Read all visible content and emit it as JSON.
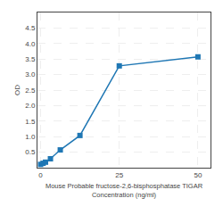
{
  "chart_data": {
    "type": "line",
    "x": [
      0,
      0.781,
      1.563,
      3.125,
      6.25,
      12.5,
      25,
      50
    ],
    "values": [
      0.107,
      0.142,
      0.178,
      0.288,
      0.573,
      1.038,
      3.28,
      3.57
    ],
    "xlabel": "Mouse Probable fructose-2,6-bisphosphatase TIGAR\nConcentration (ng/ml)",
    "ylabel": "OD",
    "xlim": [
      -1,
      54
    ],
    "ylim": [
      0,
      5.0
    ],
    "xticks": [
      0,
      25,
      50
    ],
    "yticks": [
      0.5,
      {
        "value": 1.0,
        "label": "1.0"
      },
      1.5,
      {
        "value": 2.0,
        "label": "2.0"
      },
      2.5,
      {
        "value": 3.0,
        "label": "3.0"
      },
      3.5,
      {
        "value": 4.0,
        "label": "4.0"
      },
      4.5
    ],
    "grid": true,
    "marker": "square"
  }
}
